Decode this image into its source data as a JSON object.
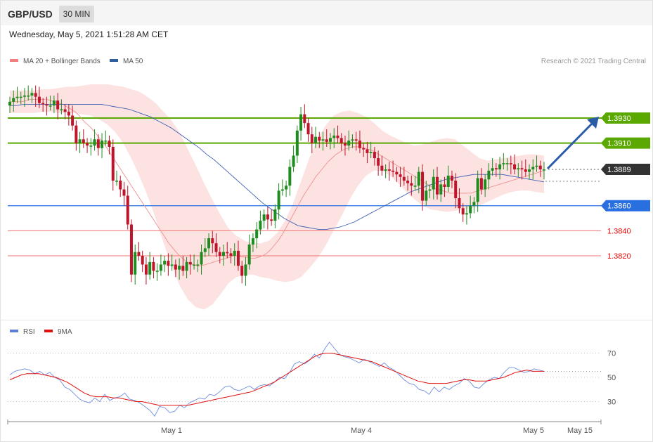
{
  "header": {
    "symbol": "GBP/USD",
    "timeframe": "30 MIN",
    "datetime": "Wednesday, May 5, 2021 1:51:28 AM CET"
  },
  "legend": {
    "items": [
      {
        "label": "MA 20 + Bollinger Bands",
        "color": "#f08080"
      },
      {
        "label": "MA 50",
        "color": "#2f5e9e"
      }
    ],
    "credit": "Research © 2021 Trading Central"
  },
  "rsi_legend": {
    "items": [
      {
        "label": "RSI",
        "color": "#5b7fd6"
      },
      {
        "label": "9MA",
        "color": "#e01010"
      }
    ]
  },
  "colors": {
    "up": "#1e8c1e",
    "down": "#c0142a",
    "band": "#fde2e2",
    "ma20": "#ef9090",
    "ma50": "#3f5fb5",
    "green_level": "#5aa800",
    "blue_level": "#2a6fe0",
    "red_level": "#f07070",
    "current": "#333333",
    "arrow": "#2a5ca8"
  },
  "chart_data": [
    {
      "type": "candlestick",
      "title": "GBP/USD 30 MIN",
      "x_labels": [
        "May 1",
        "May 4",
        "May 5",
        "May 15"
      ],
      "ylim": [
        1.3774,
        1.3964
      ],
      "levels": [
        {
          "value": 1.393,
          "label": "1.3930",
          "kind": "resistance"
        },
        {
          "value": 1.391,
          "label": "1.3910",
          "kind": "resistance"
        },
        {
          "value": 1.3889,
          "label": "1.3889",
          "kind": "current"
        },
        {
          "value": 1.386,
          "label": "1.3860",
          "kind": "pivot"
        },
        {
          "value": 1.384,
          "label": "1.3840",
          "kind": "support"
        },
        {
          "value": 1.382,
          "label": "1.3820",
          "kind": "support"
        }
      ],
      "close": [
        1.3943,
        1.3946,
        1.3947,
        1.3947,
        1.3948,
        1.3948,
        1.395,
        1.3947,
        1.3942,
        1.3941,
        1.394,
        1.394,
        1.3944,
        1.3937,
        1.3937,
        1.3935,
        1.3932,
        1.3924,
        1.391,
        1.3913,
        1.391,
        1.3908,
        1.3908,
        1.3913,
        1.3906,
        1.3912,
        1.3912,
        1.3907,
        1.388,
        1.388,
        1.3873,
        1.3868,
        1.3845,
        1.3805,
        1.3823,
        1.382,
        1.3813,
        1.3805,
        1.3815,
        1.3808,
        1.3808,
        1.3813,
        1.3816,
        1.3812,
        1.3813,
        1.3809,
        1.3812,
        1.3808,
        1.3815,
        1.3813,
        1.3813,
        1.3813,
        1.3823,
        1.3826,
        1.3834,
        1.383,
        1.3823,
        1.382,
        1.3823,
        1.3822,
        1.382,
        1.3824,
        1.3812,
        1.3804,
        1.3813,
        1.3829,
        1.3834,
        1.3841,
        1.3848,
        1.3853,
        1.3849,
        1.3848,
        1.3857,
        1.3872,
        1.3873,
        1.3876,
        1.3891,
        1.39,
        1.392,
        1.3933,
        1.3926,
        1.3917,
        1.391,
        1.3915,
        1.3912,
        1.3913,
        1.3911,
        1.3914,
        1.3916,
        1.3914,
        1.391,
        1.3908,
        1.3912,
        1.3913,
        1.3912,
        1.3906,
        1.3905,
        1.3902,
        1.3903,
        1.3898,
        1.3892,
        1.3888,
        1.3889,
        1.3888,
        1.3887,
        1.3885,
        1.3883,
        1.388,
        1.3878,
        1.3876,
        1.3876,
        1.3887,
        1.3864,
        1.3872,
        1.3873,
        1.3883,
        1.3869,
        1.3877,
        1.3875,
        1.3884,
        1.388,
        1.3866,
        1.3858,
        1.3853,
        1.3854,
        1.386,
        1.3863,
        1.3882,
        1.3873,
        1.3881,
        1.3888,
        1.389,
        1.3889,
        1.3893,
        1.3894,
        1.3894,
        1.3893,
        1.3889,
        1.389,
        1.3889,
        1.3887,
        1.3889,
        1.3891,
        1.3892,
        1.3889,
        1.3889
      ],
      "ma20": [
        1.3943,
        1.3943,
        1.3943,
        1.3943,
        1.3944,
        1.3945,
        1.3945,
        1.3945,
        1.3945,
        1.3945,
        1.3944,
        1.3943,
        1.3942,
        1.3941,
        1.3939,
        1.3937,
        1.3935,
        1.3932,
        1.3928,
        1.3925,
        1.3922,
        1.3918,
        1.3914,
        1.391,
        1.3905,
        1.39,
        1.3895,
        1.389,
        1.3885,
        1.388,
        1.3875,
        1.387,
        1.3865,
        1.386,
        1.3855,
        1.385,
        1.3845,
        1.384,
        1.3835,
        1.383,
        1.3826,
        1.3822,
        1.3819,
        1.3816,
        1.3814,
        1.3813,
        1.3812,
        1.3812,
        1.3813,
        1.3814,
        1.3815,
        1.3816,
        1.3817,
        1.3818,
        1.3819,
        1.382,
        1.382,
        1.3819,
        1.3819,
        1.3818,
        1.3818,
        1.3819,
        1.382,
        1.3822,
        1.3825,
        1.3829,
        1.3833,
        1.3838,
        1.3844,
        1.385,
        1.3856,
        1.3862,
        1.3868,
        1.3873,
        1.3878,
        1.3883,
        1.3887,
        1.3891,
        1.3895,
        1.3898,
        1.3901,
        1.3903,
        1.3905,
        1.3906,
        1.3907,
        1.3907,
        1.3907,
        1.3906,
        1.3905,
        1.3904,
        1.3902,
        1.39,
        1.3898,
        1.3896,
        1.3894,
        1.3892,
        1.389,
        1.3888,
        1.3886,
        1.3884,
        1.3882,
        1.388,
        1.3878,
        1.3876,
        1.3874,
        1.3873,
        1.3872,
        1.3871,
        1.387,
        1.387,
        1.387,
        1.387,
        1.387,
        1.387,
        1.3871,
        1.3872,
        1.3873,
        1.3874,
        1.3875,
        1.3876,
        1.3877,
        1.3878,
        1.3879,
        1.388,
        1.3881,
        1.3882,
        1.3883,
        1.3884,
        1.3885,
        1.3886,
        1.3887,
        1.3888
      ],
      "ma50": [
        1.394,
        1.394,
        1.3941,
        1.3941,
        1.3941,
        1.3941,
        1.3941,
        1.3941,
        1.3941,
        1.3941,
        1.3941,
        1.3941,
        1.3941,
        1.3941,
        1.394,
        1.3939,
        1.3938,
        1.3937,
        1.3935,
        1.3933,
        1.3931,
        1.3928,
        1.3925,
        1.3922,
        1.3918,
        1.3914,
        1.391,
        1.3906,
        1.3901,
        1.3897,
        1.3892,
        1.3887,
        1.3882,
        1.3877,
        1.3872,
        1.3867,
        1.3862,
        1.3858,
        1.3854,
        1.385,
        1.3847,
        1.3844,
        1.3843,
        1.3842,
        1.3841,
        1.3841,
        1.3842,
        1.3843,
        1.3845,
        1.3847,
        1.385,
        1.3853,
        1.3856,
        1.3859,
        1.3862,
        1.3865,
        1.3868,
        1.3871,
        1.3873,
        1.3875,
        1.3877,
        1.3879,
        1.3881,
        1.3882,
        1.3883,
        1.3884,
        1.3885,
        1.3885,
        1.3885,
        1.3885,
        1.3885,
        1.3884,
        1.3883,
        1.3882,
        1.3881,
        1.388,
        1.3879
      ],
      "bb_upper": [
        1.3952,
        1.3952,
        1.3952,
        1.3952,
        1.3953,
        1.3953,
        1.3954,
        1.3955,
        1.3955,
        1.3956,
        1.3957,
        1.3957,
        1.3957,
        1.3956,
        1.3955,
        1.3953,
        1.3951,
        1.3947,
        1.3942,
        1.3935,
        1.3928,
        1.3918,
        1.3905,
        1.3892,
        1.3878,
        1.3865,
        1.3853,
        1.3842,
        1.3836,
        1.3832,
        1.383,
        1.383,
        1.3832,
        1.3838,
        1.3848,
        1.3862,
        1.388,
        1.3898,
        1.3913,
        1.3924,
        1.3932,
        1.3935,
        1.3936,
        1.3934,
        1.3931,
        1.3926,
        1.392,
        1.3916,
        1.3913,
        1.391,
        1.3908,
        1.3909,
        1.3911,
        1.3913,
        1.3914,
        1.3913,
        1.3908,
        1.3903,
        1.3898,
        1.3896,
        1.3897,
        1.3898,
        1.3899,
        1.39,
        1.3901,
        1.3901,
        1.39
      ],
      "bb_lower": [
        1.3934,
        1.3934,
        1.3934,
        1.3934,
        1.3935,
        1.3935,
        1.3934,
        1.3934,
        1.3934,
        1.3933,
        1.3932,
        1.3929,
        1.3925,
        1.3919,
        1.391,
        1.3898,
        1.3884,
        1.3868,
        1.385,
        1.383,
        1.3812,
        1.3796,
        1.3785,
        1.3779,
        1.3777,
        1.3781,
        1.3789,
        1.3798,
        1.3803,
        1.3805,
        1.3805,
        1.3803,
        1.3802,
        1.38,
        1.3799,
        1.38,
        1.3803,
        1.381,
        1.3818,
        1.3828,
        1.384,
        1.3852,
        1.3865,
        1.3876,
        1.3884,
        1.3888,
        1.3888,
        1.3884,
        1.3878,
        1.3871,
        1.3865,
        1.386,
        1.3857,
        1.3856,
        1.3855,
        1.3856,
        1.3857,
        1.3858,
        1.386,
        1.3863,
        1.3866,
        1.3869,
        1.3871,
        1.3872,
        1.3872,
        1.3871,
        1.387
      ]
    },
    {
      "type": "line",
      "ylim": [
        0,
        100
      ],
      "levels": [
        70,
        50,
        30
      ],
      "series": [
        {
          "name": "RSI",
          "values": [
            52,
            55,
            56,
            57,
            56,
            53,
            55,
            52,
            54,
            50,
            48,
            42,
            40,
            36,
            32,
            30,
            29,
            33,
            30,
            36,
            31,
            33,
            34,
            37,
            32,
            31,
            29,
            26,
            23,
            18,
            26,
            25,
            21,
            22,
            27,
            25,
            29,
            31,
            33,
            32,
            36,
            35,
            38,
            42,
            43,
            40,
            39,
            41,
            43,
            40,
            43,
            44,
            43,
            46,
            50,
            49,
            54,
            61,
            63,
            61,
            64,
            69,
            66,
            73,
            79,
            74,
            69,
            67,
            66,
            64,
            62,
            65,
            63,
            61,
            59,
            62,
            58,
            56,
            52,
            48,
            45,
            44,
            40,
            39,
            36,
            42,
            38,
            42,
            40,
            43,
            45,
            49,
            47,
            42,
            41,
            45,
            48,
            50,
            49,
            54,
            58,
            58,
            56,
            54,
            55,
            57,
            56,
            55
          ]
        },
        {
          "name": "9MA",
          "values": [
            48,
            50,
            52,
            53,
            53,
            53,
            52,
            51,
            50,
            48,
            46,
            43,
            40,
            37,
            35,
            34,
            34,
            34,
            33,
            33,
            32,
            31,
            30,
            30,
            29,
            28,
            27,
            27,
            27,
            27,
            27,
            27,
            28,
            29,
            30,
            31,
            32,
            33,
            34,
            35,
            36,
            37,
            38,
            40,
            42,
            44,
            46,
            49,
            52,
            55,
            58,
            61,
            64,
            67,
            69,
            70,
            70,
            69,
            68,
            67,
            66,
            65,
            64,
            63,
            61,
            59,
            57,
            55,
            53,
            51,
            49,
            47,
            46,
            45,
            45,
            45,
            45,
            46,
            47,
            48,
            48,
            47,
            47,
            47,
            48,
            49,
            50,
            52,
            54,
            55,
            56,
            55,
            55,
            55
          ]
        }
      ],
      "x_labels": [
        "May 1",
        "May 4",
        "May 5",
        "May 15"
      ]
    }
  ]
}
